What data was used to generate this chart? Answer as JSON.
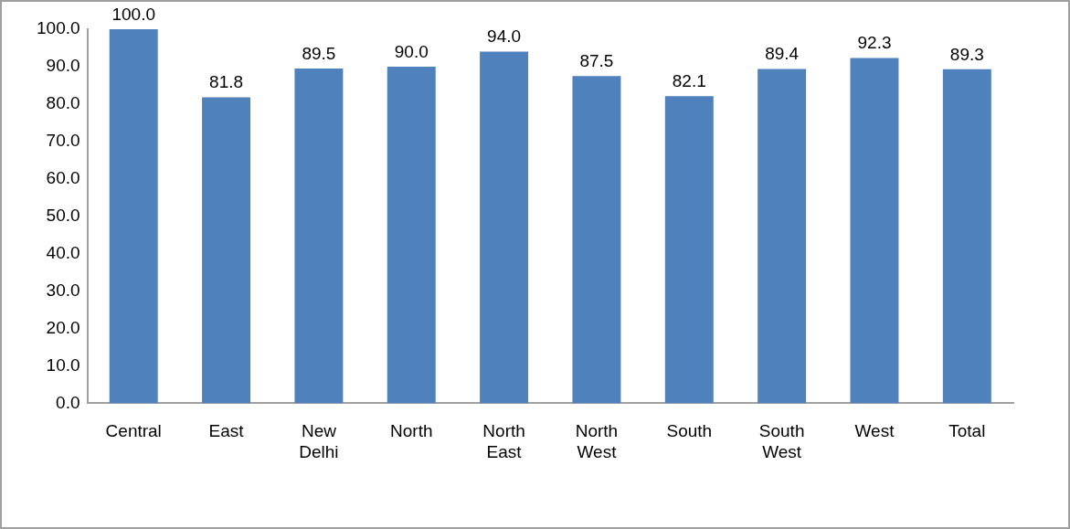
{
  "chart_data": {
    "type": "bar",
    "categories": [
      "Central",
      "East",
      "New Delhi",
      "North",
      "North East",
      "North West",
      "South",
      "South West",
      "West",
      "Total"
    ],
    "values": [
      100.0,
      81.8,
      89.5,
      90.0,
      94.0,
      87.5,
      82.1,
      89.4,
      92.3,
      89.3
    ],
    "value_labels": [
      "100.0",
      "81.8",
      "89.5",
      "90.0",
      "94.0",
      "87.5",
      "82.1",
      "89.4",
      "92.3",
      "89.3"
    ],
    "color": "#4f81bd",
    "ylim": [
      0,
      100
    ],
    "yticks": [
      {
        "value": 0,
        "label": "0.0"
      },
      {
        "value": 10,
        "label": "10.0"
      },
      {
        "value": 20,
        "label": "20.0"
      },
      {
        "value": 30,
        "label": "30.0"
      },
      {
        "value": 40,
        "label": "40.0"
      },
      {
        "value": 50,
        "label": "50.0"
      },
      {
        "value": 60,
        "label": "60.0"
      },
      {
        "value": 70,
        "label": "70.0"
      },
      {
        "value": 80,
        "label": "80.0"
      },
      {
        "value": 90,
        "label": "90.0"
      },
      {
        "value": 100,
        "label": "100.0"
      }
    ],
    "grid": false,
    "legend": false
  }
}
